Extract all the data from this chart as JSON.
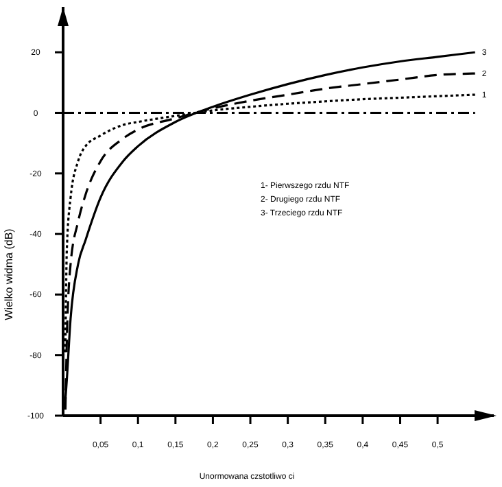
{
  "chart_data": {
    "type": "line",
    "xlabel": "Unormowana czstotliwo ci",
    "ylabel": "Wielko widma (dB)",
    "x": [
      0.003,
      0.005,
      0.01,
      0.02,
      0.03,
      0.05,
      0.08,
      0.1,
      0.15,
      0.2,
      0.25,
      0.3,
      0.35,
      0.4,
      0.45,
      0.5,
      0.55
    ],
    "series": [
      {
        "name": "1",
        "color": "#000000",
        "line_style": "dotted",
        "values": [
          -80,
          -45,
          -28,
          -16,
          -11,
          -7.5,
          -4,
          -3,
          -1,
          0.8,
          2,
          3,
          3.8,
          4.5,
          5,
          5.5,
          6
        ]
      },
      {
        "name": "2",
        "color": "#000000",
        "line_style": "dashed",
        "values": [
          -100,
          -75,
          -50,
          -36,
          -27,
          -16,
          -8.5,
          -5.5,
          -1.8,
          1.5,
          4,
          6,
          8,
          9.5,
          11,
          12.5,
          13
        ]
      },
      {
        "name": "3",
        "color": "#000000",
        "line_style": "solid",
        "values": [
          -95,
          -88,
          -68,
          -50,
          -42,
          -28,
          -16,
          -11,
          -3,
          2,
          6,
          9.5,
          12.5,
          15,
          17,
          18.5,
          20
        ]
      }
    ],
    "xlim": [
      0,
      0.575
    ],
    "ylim": [
      -100,
      35
    ],
    "xticks": [
      {
        "value": 0.05,
        "label": "0,05"
      },
      {
        "value": 0.1,
        "label": "0,1"
      },
      {
        "value": 0.15,
        "label": "0,15"
      },
      {
        "value": 0.2,
        "label": "0,2"
      },
      {
        "value": 0.25,
        "label": "0,25"
      },
      {
        "value": 0.3,
        "label": "0,3"
      },
      {
        "value": 0.35,
        "label": "0,35"
      },
      {
        "value": 0.4,
        "label": "0,4"
      },
      {
        "value": 0.45,
        "label": "0,45"
      },
      {
        "value": 0.5,
        "label": "0,5"
      }
    ],
    "yticks": [
      20,
      0,
      -20,
      -40,
      -60,
      -80,
      -100
    ],
    "ref_lines": [
      {
        "axis": "y",
        "value": 0,
        "line_style": "dashdot",
        "color": "#000000"
      }
    ],
    "annotations": [
      "1- Pierwszego rzdu NTF",
      "2- Drugiego rzdu NTF",
      "3- Trzeciego rzdu NTF"
    ],
    "grid": false,
    "marker": "none"
  }
}
